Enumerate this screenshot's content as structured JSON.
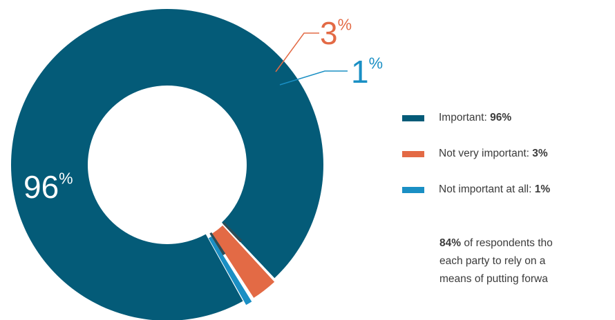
{
  "chart_data": {
    "type": "pie",
    "donut": true,
    "slices": [
      {
        "name": "Important",
        "value": 96,
        "color": "#045b78",
        "label": "96",
        "label_suffix": "%",
        "value_text": "96%"
      },
      {
        "name": "Not very important",
        "value": 3,
        "color": "#e36a45",
        "label": "3",
        "label_suffix": "%",
        "value_text": "3%"
      },
      {
        "name": "Not important at all",
        "value": 1,
        "color": "#1a8fc4",
        "label": "1",
        "label_suffix": "%",
        "value_text": "1%"
      }
    ],
    "separator_color": "#2d4d57"
  },
  "note": {
    "highlight": "84%",
    "text": " of respondents tho",
    "line2": "each party to rely on a",
    "line3": "means of putting forwa"
  }
}
